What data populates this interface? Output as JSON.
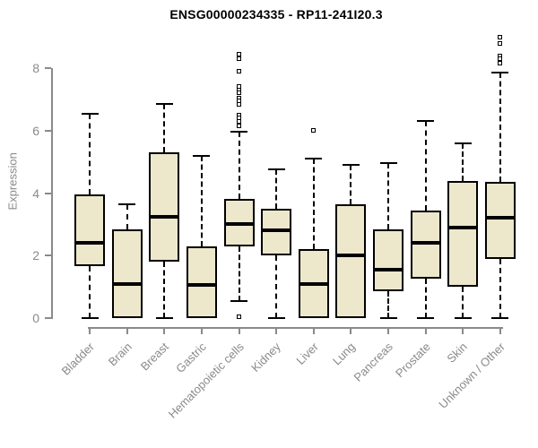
{
  "title": "ENSG00000234335 - RP11-241I20.3",
  "colors": {
    "box_fill": "#ede7cc",
    "box_border": "#000000",
    "median": "#000000",
    "axis": "#8a8a8a",
    "title_text": "#000000",
    "background": "#ffffff"
  },
  "chart_data": {
    "type": "boxplot",
    "title": "ENSG00000234335 - RP11-241I20.3",
    "xlabel": "",
    "ylabel": "Expression",
    "ylim": [
      0,
      9.2
    ],
    "yticks": [
      0,
      2,
      4,
      6,
      8
    ],
    "grid": false,
    "legend": "none",
    "categories": [
      "Bladder",
      "Brain",
      "Breast",
      "Gastric",
      "Hematopoietic cells",
      "Kidney",
      "Liver",
      "Lung",
      "Pancreas",
      "Prostate",
      "Skin",
      "Unknown / Other"
    ],
    "boxes": [
      {
        "category": "Bladder",
        "whisker_low": 0,
        "q1": 1.65,
        "median": 2.4,
        "q3": 3.95,
        "whisker_high": 6.55,
        "outliers": []
      },
      {
        "category": "Brain",
        "whisker_low": 0,
        "q1": 0,
        "median": 1.1,
        "q3": 2.85,
        "whisker_high": 3.65,
        "outliers": []
      },
      {
        "category": "Breast",
        "whisker_low": 0,
        "q1": 1.8,
        "median": 3.25,
        "q3": 5.3,
        "whisker_high": 6.85,
        "outliers": []
      },
      {
        "category": "Gastric",
        "whisker_low": 0,
        "q1": 0,
        "median": 1.05,
        "q3": 2.3,
        "whisker_high": 5.2,
        "outliers": []
      },
      {
        "category": "Hematopoietic cells",
        "whisker_low": 0.55,
        "q1": 2.3,
        "median": 3.0,
        "q3": 3.8,
        "whisker_high": 5.95,
        "outliers": [
          8.45,
          8.3,
          7.9,
          7.4,
          7.3,
          7.2,
          7.05,
          6.95,
          6.85,
          6.5,
          6.4,
          6.3,
          6.15,
          0.05
        ]
      },
      {
        "category": "Kidney",
        "whisker_low": 0,
        "q1": 2.0,
        "median": 2.8,
        "q3": 3.5,
        "whisker_high": 4.75,
        "outliers": []
      },
      {
        "category": "Liver",
        "whisker_low": 0,
        "q1": 0,
        "median": 1.1,
        "q3": 2.2,
        "whisker_high": 5.1,
        "outliers": [
          6.0
        ]
      },
      {
        "category": "Lung",
        "whisker_low": 0,
        "q1": 0,
        "median": 2.0,
        "q3": 3.65,
        "whisker_high": 4.9,
        "outliers": []
      },
      {
        "category": "Pancreas",
        "whisker_low": 0,
        "q1": 0.85,
        "median": 1.55,
        "q3": 2.85,
        "whisker_high": 4.95,
        "outliers": []
      },
      {
        "category": "Prostate",
        "whisker_low": 0,
        "q1": 1.25,
        "median": 2.4,
        "q3": 3.45,
        "whisker_high": 6.3,
        "outliers": []
      },
      {
        "category": "Skin",
        "whisker_low": 0,
        "q1": 1.0,
        "median": 2.9,
        "q3": 4.4,
        "whisker_high": 5.6,
        "outliers": []
      },
      {
        "category": "Unknown / Other",
        "whisker_low": 0,
        "q1": 1.9,
        "median": 3.2,
        "q3": 4.35,
        "whisker_high": 7.85,
        "outliers": [
          9.0,
          8.8,
          8.4,
          8.3,
          8.15
        ]
      }
    ]
  }
}
